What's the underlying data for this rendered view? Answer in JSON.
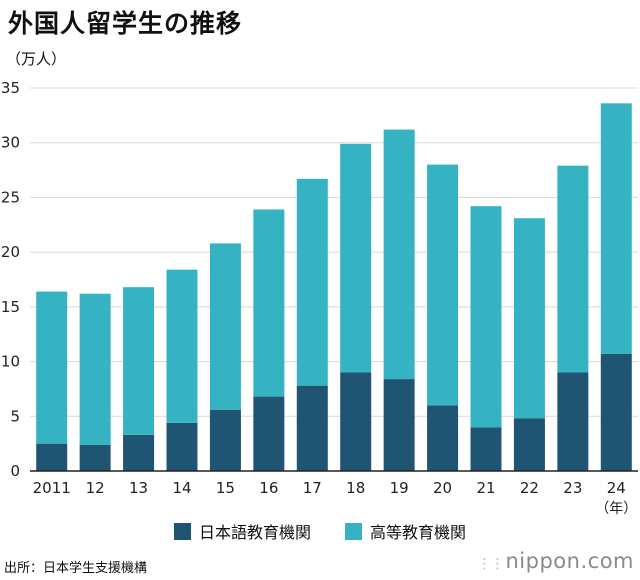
{
  "header": {
    "title": "外国人留学生の推移",
    "unit": "（万人）"
  },
  "colors": {
    "language_schools": "#1f5473",
    "higher_education": "#35b3c2",
    "grid": "#d8d8d8",
    "axis": "#222222"
  },
  "chart_data": {
    "type": "bar",
    "stacked": true,
    "categories": [
      "2011",
      "12",
      "13",
      "14",
      "15",
      "16",
      "17",
      "18",
      "19",
      "20",
      "21",
      "22",
      "23",
      "24"
    ],
    "x_unit_label": "（年）",
    "ylim": [
      0,
      35
    ],
    "yticks": [
      0,
      5,
      10,
      15,
      20,
      25,
      30,
      35
    ],
    "grid": true,
    "legend_position": "bottom",
    "series": [
      {
        "name": "日本語教育機関",
        "values": [
          2.5,
          2.4,
          3.3,
          4.4,
          5.6,
          6.8,
          7.8,
          9.0,
          8.4,
          6.0,
          4.0,
          4.8,
          9.0,
          10.7
        ]
      },
      {
        "name": "高等教育機関",
        "values": [
          13.9,
          13.8,
          13.5,
          14.0,
          15.2,
          17.1,
          18.9,
          20.9,
          22.8,
          22.0,
          20.2,
          18.3,
          18.9,
          22.9
        ]
      }
    ]
  },
  "footer": {
    "source": "出所：日本学生支援機構",
    "logo_text": "nippon",
    "logo_suffix": ".com"
  }
}
